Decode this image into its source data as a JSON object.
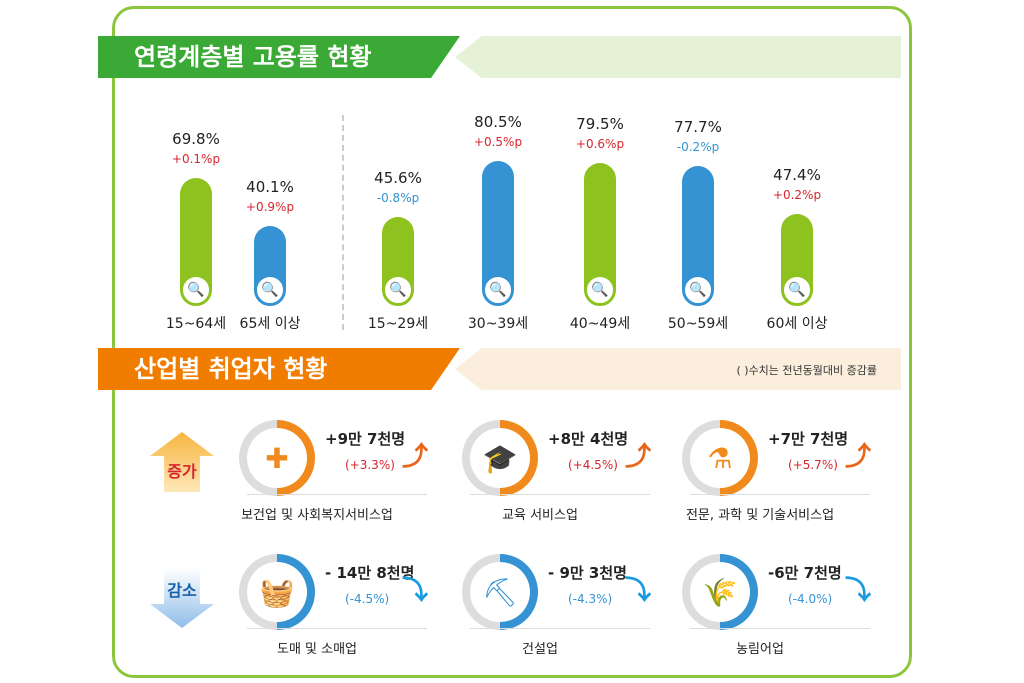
{
  "title1": "연령계층별 고용률 현황",
  "title2": "산업별 취업자 현황",
  "note": "( )수치는 전년동월대비 증감률",
  "chart_data": {
    "type": "bar",
    "title": "연령계층별 고용률 현황",
    "categories": [
      "15~64세",
      "65세 이상",
      "15~29세",
      "30~39세",
      "40~49세",
      "50~59세",
      "60세 이상"
    ],
    "values": [
      69.8,
      40.1,
      45.6,
      80.5,
      79.5,
      77.7,
      47.4
    ],
    "value_labels": [
      "69.8%",
      "40.1%",
      "45.6%",
      "80.5%",
      "79.5%",
      "77.7%",
      "47.4%"
    ],
    "changes": [
      "+0.1%p",
      "+0.9%p",
      "-0.8%p",
      "+0.5%p",
      "+0.6%p",
      "-0.2%p",
      "+0.2%p"
    ],
    "bar_colors": [
      "#8dc21f",
      "#3593d4",
      "#8dc21f",
      "#3593d4",
      "#8dc21f",
      "#3593d4",
      "#8dc21f"
    ],
    "ylim": [
      0,
      100
    ]
  },
  "increase": {
    "label": "증가",
    "items": [
      {
        "name": "보건업 및 사회복지서비스업",
        "value": "+9만 7천명",
        "pct": "(+3.3%)",
        "icon": "medical-kit-icon",
        "glyph": "✚"
      },
      {
        "name": "교육 서비스업",
        "value": "+8만 4천명",
        "pct": "(+4.5%)",
        "icon": "graduation-cap-icon",
        "glyph": "🎓"
      },
      {
        "name": "전문, 과학 및 기술서비스업",
        "value": "+7만 7천명",
        "pct": "(+5.7%)",
        "icon": "flask-icon",
        "glyph": "⚗"
      }
    ]
  },
  "decrease": {
    "label": "감소",
    "items": [
      {
        "name": "도매 및 소매업",
        "value": "- 14만 8천명",
        "pct": "(-4.5%)",
        "icon": "basket-icon",
        "glyph": "🧺"
      },
      {
        "name": "건설업",
        "value": "- 9만 3천명",
        "pct": "(-4.3%)",
        "icon": "excavator-icon",
        "glyph": "⛏"
      },
      {
        "name": "농림어업",
        "value": "-6만 7천명",
        "pct": "(-4.0%)",
        "icon": "wheat-icon",
        "glyph": "🌾"
      }
    ]
  },
  "colors": {
    "green": "#8dc21f",
    "blue": "#3593d4",
    "orange": "#f08a1c",
    "red": "#d7262e"
  }
}
